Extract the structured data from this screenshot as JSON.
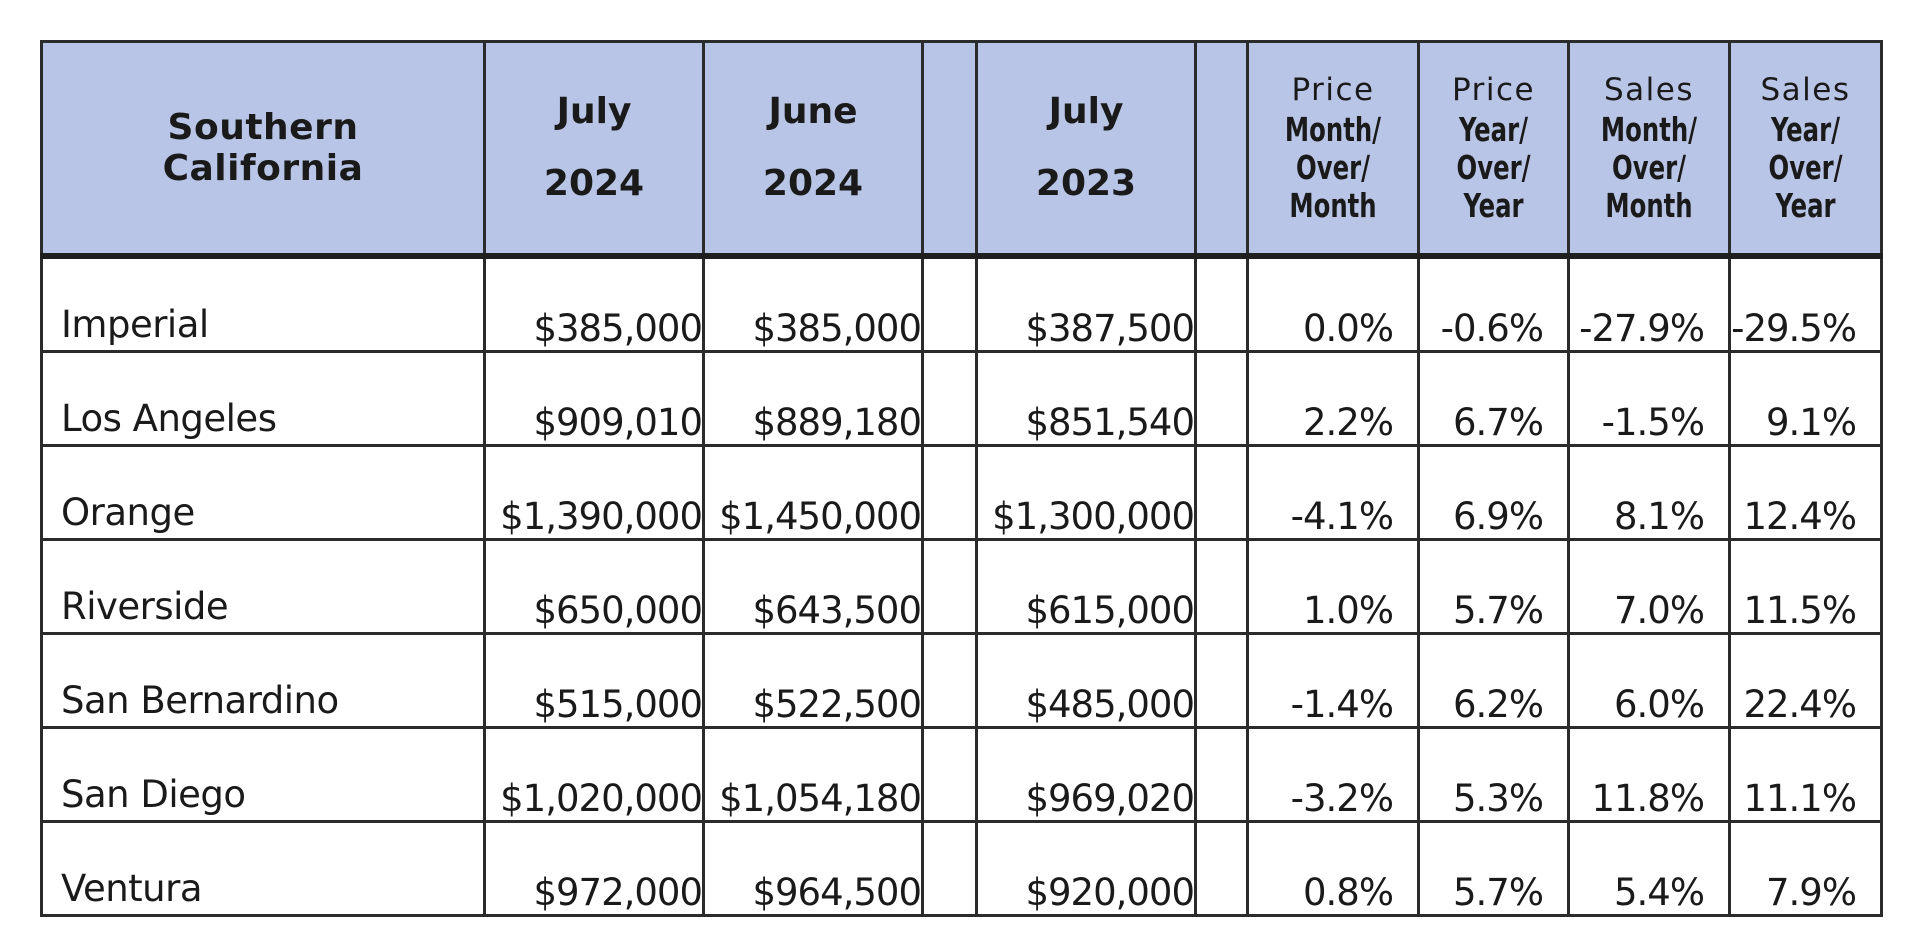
{
  "table": {
    "header": {
      "region": [
        "Southern",
        "California"
      ],
      "periods": [
        {
          "month": "July",
          "year": "2024"
        },
        {
          "month": "June",
          "year": "2024"
        },
        {
          "month": "July",
          "year": "2023"
        }
      ],
      "changes": [
        {
          "metric": "Price",
          "lines": [
            "Month/",
            "Over/",
            "Month"
          ]
        },
        {
          "metric": "Price",
          "lines": [
            "Year/",
            "Over/",
            "Year"
          ]
        },
        {
          "metric": "Sales",
          "lines": [
            "Month/",
            "Over/",
            "Month"
          ]
        },
        {
          "metric": "Sales",
          "lines": [
            "Year/",
            "Over/",
            "Year"
          ]
        }
      ]
    },
    "rows": [
      {
        "name": "Imperial",
        "jul2024": "$385,000",
        "jun2024": "$385,000",
        "jul2023": "$387,500",
        "price_mom": "0.0%",
        "price_yoy": "-0.6%",
        "sales_mom": "-27.9%",
        "sales_yoy": "-29.5%"
      },
      {
        "name": "Los Angeles",
        "jul2024": "$909,010",
        "jun2024": "$889,180",
        "jul2023": "$851,540",
        "price_mom": "2.2%",
        "price_yoy": "6.7%",
        "sales_mom": "-1.5%",
        "sales_yoy": "9.1%"
      },
      {
        "name": "Orange",
        "jul2024": "$1,390,000",
        "jun2024": "$1,450,000",
        "jul2023": "$1,300,000",
        "price_mom": "-4.1%",
        "price_yoy": "6.9%",
        "sales_mom": "8.1%",
        "sales_yoy": "12.4%"
      },
      {
        "name": "Riverside",
        "jul2024": "$650,000",
        "jun2024": "$643,500",
        "jul2023": "$615,000",
        "price_mom": "1.0%",
        "price_yoy": "5.7%",
        "sales_mom": "7.0%",
        "sales_yoy": "11.5%"
      },
      {
        "name": "San Bernardino",
        "jul2024": "$515,000",
        "jun2024": "$522,500",
        "jul2023": "$485,000",
        "price_mom": "-1.4%",
        "price_yoy": "6.2%",
        "sales_mom": "6.0%",
        "sales_yoy": "22.4%"
      },
      {
        "name": "San Diego",
        "jul2024": "$1,020,000",
        "jun2024": "$1,054,180",
        "jul2023": "$969,020",
        "price_mom": "-3.2%",
        "price_yoy": "5.3%",
        "sales_mom": "11.8%",
        "sales_yoy": "11.1%"
      },
      {
        "name": "Ventura",
        "jul2024": "$972,000",
        "jun2024": "$964,500",
        "jul2023": "$920,000",
        "price_mom": "0.8%",
        "price_yoy": "5.7%",
        "sales_mom": "5.4%",
        "sales_yoy": "7.9%"
      }
    ]
  },
  "colors": {
    "header_background": "#b8c5e6",
    "border": "#2b2b2b",
    "text": "#1a1a1a"
  }
}
